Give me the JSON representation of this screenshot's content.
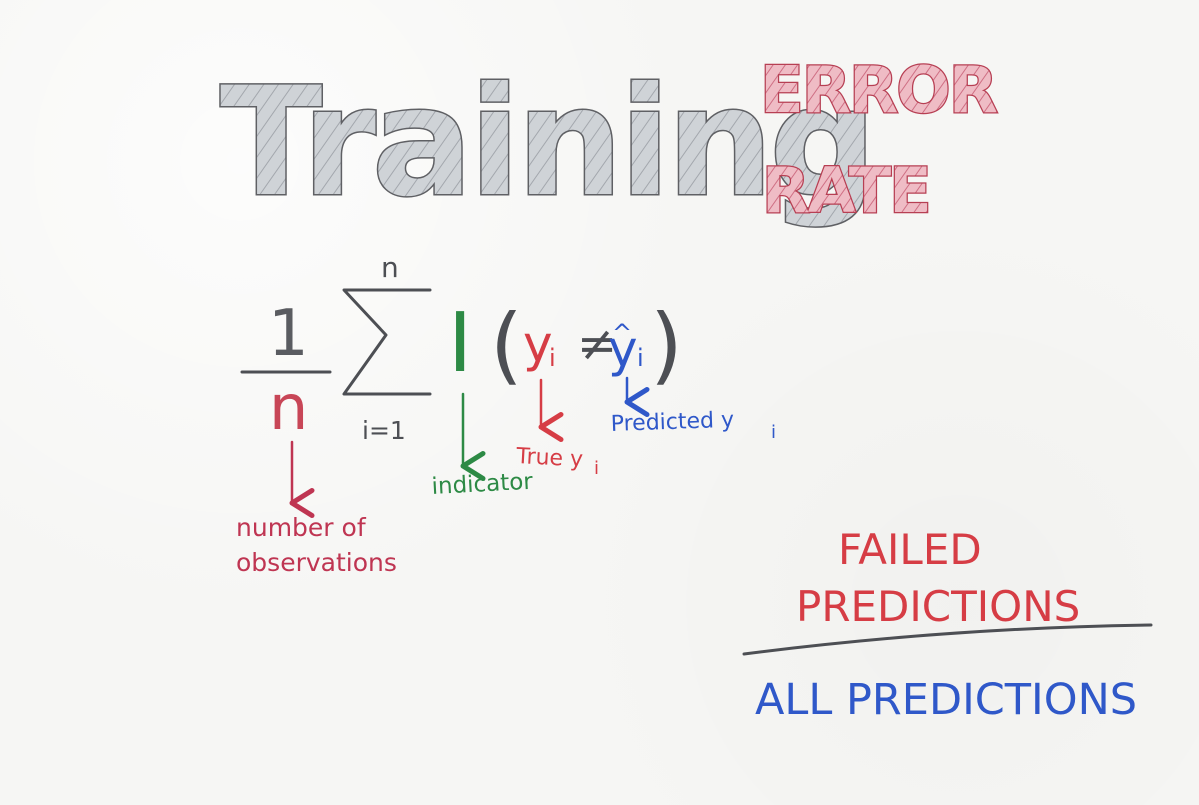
{
  "title": {
    "main": "Training",
    "stack_line_1": "ERROR",
    "stack_line_2": "RATE"
  },
  "formula": {
    "numerator": "1",
    "denominator": "n",
    "sum_upper": "n",
    "sum_lower": "i=1",
    "indicator": "I",
    "open_paren": "(",
    "true_y": "y",
    "true_sub": "i",
    "not_equal": "≠",
    "pred_y": "y",
    "pred_sub": "i",
    "hat": "^",
    "close_paren": ")"
  },
  "annotations": {
    "n_line_1": "number of",
    "n_line_2": "observations",
    "indicator": "indicator",
    "true": "True y",
    "true_sub": "i",
    "predicted": "Predicted y",
    "predicted_sub": "i"
  },
  "ratio": {
    "numerator_line_1": "FAILED",
    "numerator_line_2": "PREDICTIONS",
    "denominator": "ALL PREDICTIONS"
  },
  "colors": {
    "gray": "#5f6064",
    "gray_fill": "#c8cbcf",
    "title_red": "#b73f53",
    "title_red_fill": "#e7a8b5",
    "math_dark": "#4d4f54",
    "red": "#d63d45",
    "crimson": "#bf3552",
    "green": "#2d8a45",
    "blue": "#2f58c9"
  }
}
